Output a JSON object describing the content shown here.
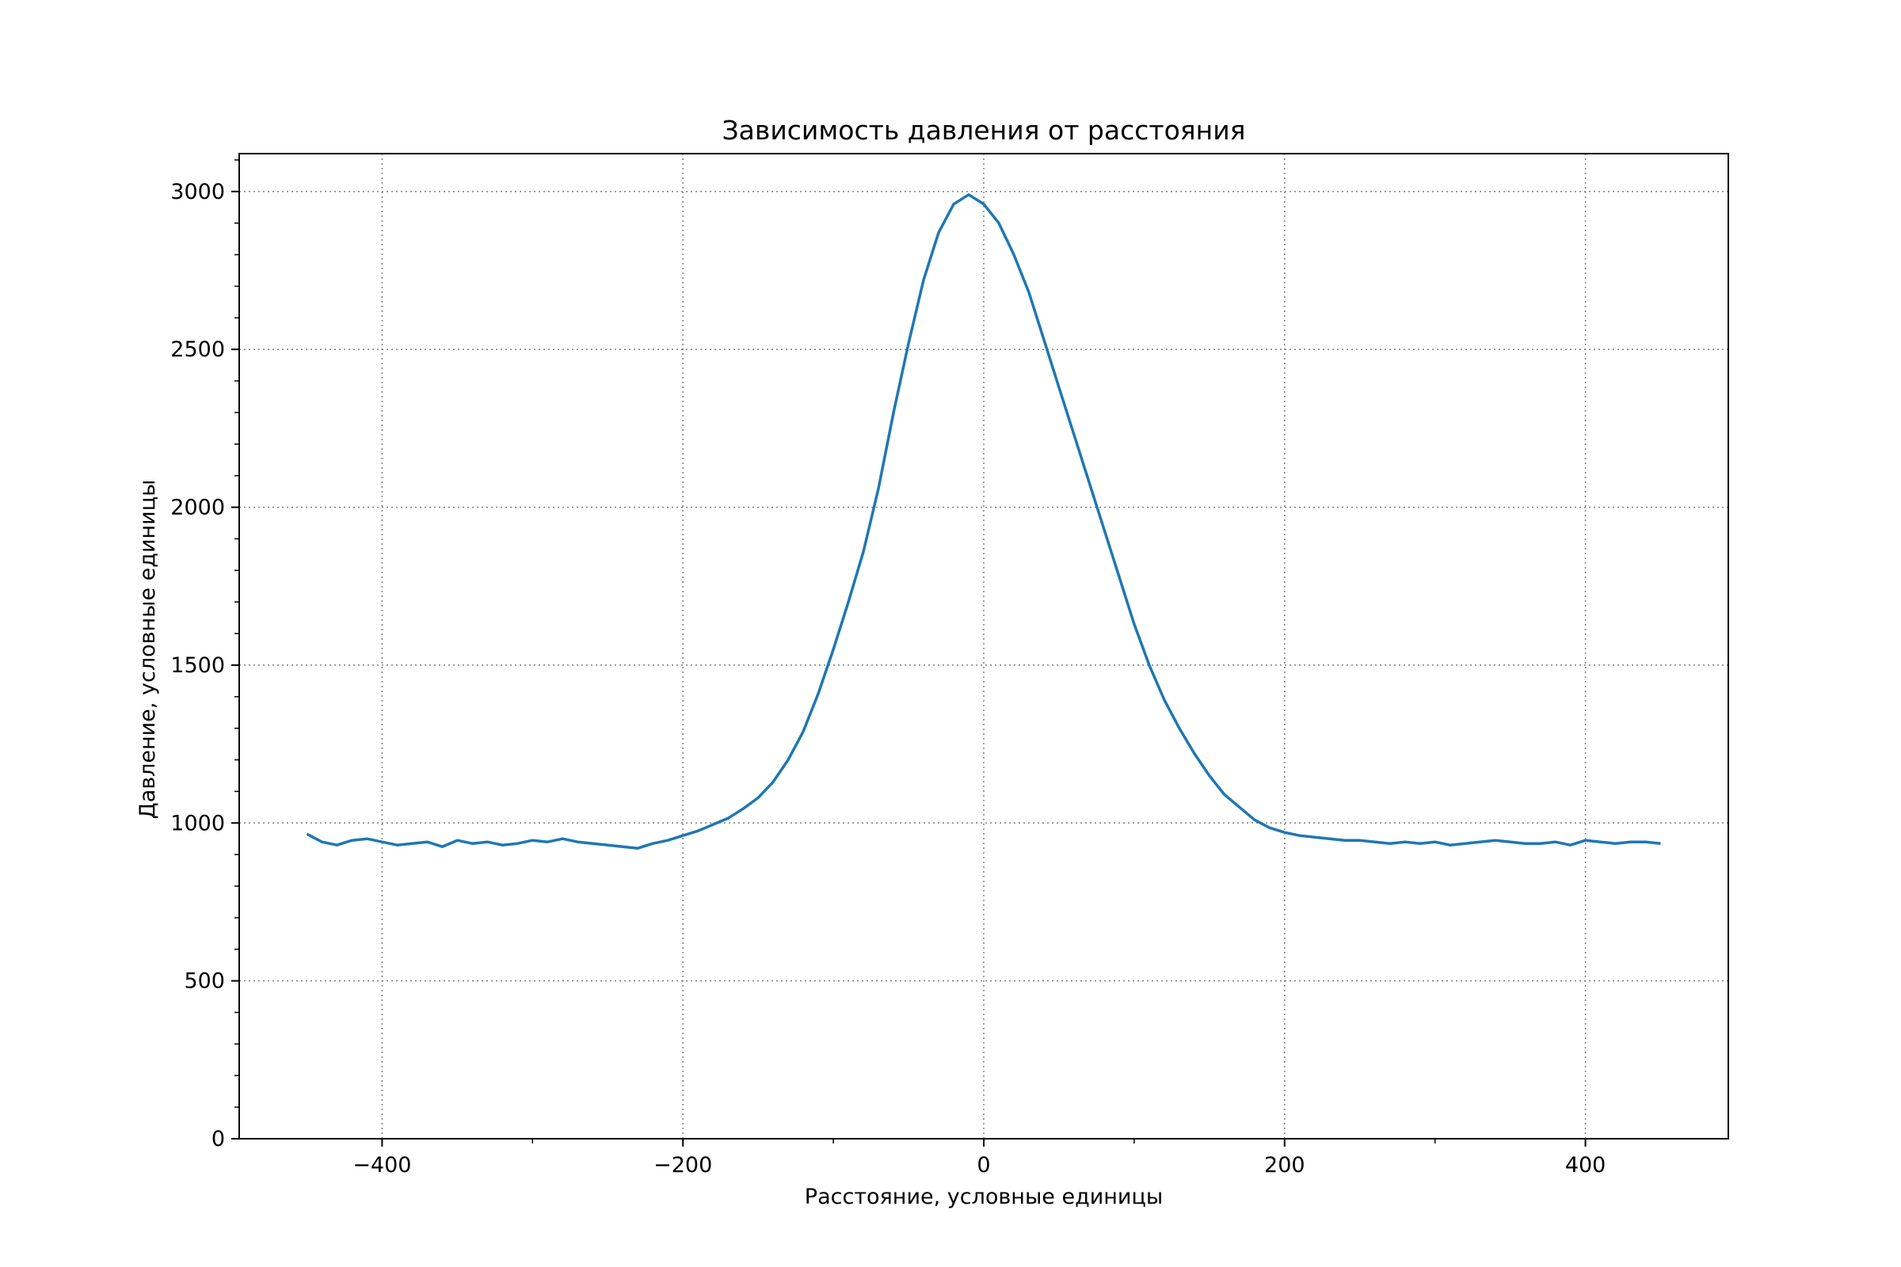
{
  "chart_data": {
    "type": "line",
    "title": "Зависимость давления от расстояния",
    "xlabel": "Расстояние, условные единицы",
    "ylabel": "Давление, условные единицы",
    "xlim": [
      -495,
      495
    ],
    "ylim": [
      0,
      3120
    ],
    "x_ticks": [
      -400,
      -200,
      0,
      200,
      400
    ],
    "x_tick_labels": [
      "−400",
      "−200",
      "0",
      "200",
      "400"
    ],
    "y_ticks": [
      0,
      500,
      1000,
      1500,
      2000,
      2500,
      3000
    ],
    "y_tick_labels": [
      "0",
      "500",
      "1000",
      "1500",
      "2000",
      "2500",
      "3000"
    ],
    "grid": true,
    "legend": "none",
    "colors": {
      "series": "#1f77b4",
      "grid": "#808080"
    },
    "series": [
      {
        "x": [
          -450,
          -440,
          -430,
          -420,
          -410,
          -400,
          -390,
          -380,
          -370,
          -360,
          -350,
          -340,
          -330,
          -320,
          -310,
          -300,
          -290,
          -280,
          -270,
          -260,
          -250,
          -240,
          -230,
          -220,
          -210,
          -200,
          -190,
          -180,
          -170,
          -160,
          -150,
          -140,
          -130,
          -120,
          -110,
          -100,
          -90,
          -80,
          -70,
          -60,
          -50,
          -40,
          -30,
          -20,
          -10,
          0,
          10,
          20,
          30,
          40,
          50,
          60,
          70,
          80,
          90,
          100,
          110,
          120,
          130,
          140,
          150,
          160,
          170,
          180,
          190,
          200,
          210,
          220,
          230,
          240,
          250,
          260,
          270,
          280,
          290,
          300,
          310,
          320,
          330,
          340,
          350,
          360,
          370,
          380,
          390,
          400,
          410,
          420,
          430,
          440,
          450
        ],
        "y": [
          965,
          940,
          930,
          945,
          950,
          940,
          930,
          935,
          940,
          925,
          945,
          935,
          940,
          930,
          935,
          945,
          940,
          950,
          940,
          935,
          930,
          925,
          920,
          935,
          945,
          960,
          975,
          995,
          1015,
          1045,
          1080,
          1130,
          1200,
          1290,
          1410,
          1550,
          1700,
          1860,
          2060,
          2300,
          2520,
          2720,
          2870,
          2960,
          2990,
          2960,
          2900,
          2800,
          2680,
          2530,
          2380,
          2230,
          2080,
          1930,
          1780,
          1630,
          1500,
          1390,
          1300,
          1220,
          1150,
          1090,
          1050,
          1010,
          985,
          970,
          960,
          955,
          950,
          945,
          945,
          940,
          935,
          940,
          935,
          940,
          930,
          935,
          940,
          945,
          940,
          935,
          935,
          940,
          930,
          945,
          940,
          935,
          940,
          940,
          935
        ]
      }
    ]
  }
}
